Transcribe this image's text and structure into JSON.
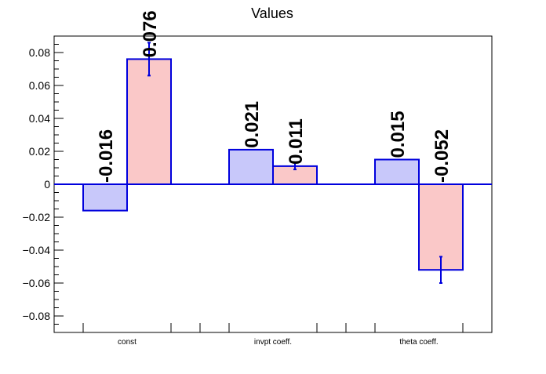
{
  "chart_data": {
    "type": "bar",
    "title": "Values",
    "categories": [
      "const",
      "invpt coeff.",
      "theta coeff."
    ],
    "series": [
      {
        "values": [
          -0.016,
          0.021,
          0.015
        ],
        "errors": [
          0,
          0,
          0
        ],
        "labels": [
          "-0.016",
          "0.021",
          "0.015"
        ],
        "fill": "#c8c8fa",
        "stroke": "#0000dd"
      },
      {
        "values": [
          0.076,
          0.011,
          -0.052
        ],
        "errors": [
          0.01,
          0.002,
          0.008
        ],
        "labels": [
          "0.076",
          "0.011",
          "-0.052"
        ],
        "fill": "#fac8c8",
        "stroke": "#0000dd"
      }
    ],
    "ylim": [
      -0.09,
      0.09
    ],
    "yticks": [
      -0.08,
      -0.06,
      -0.04,
      -0.02,
      0,
      0.02,
      0.04,
      0.06,
      0.08
    ],
    "ytick_labels": [
      "−0.08",
      "−0.06",
      "−0.04",
      "−0.02",
      "0",
      "0.02",
      "0.04",
      "0.06",
      "0.08"
    ],
    "xlabel": "",
    "ylabel": "",
    "grid": false,
    "axis_color": "#000000",
    "zero_line_color": "#0000dd"
  }
}
